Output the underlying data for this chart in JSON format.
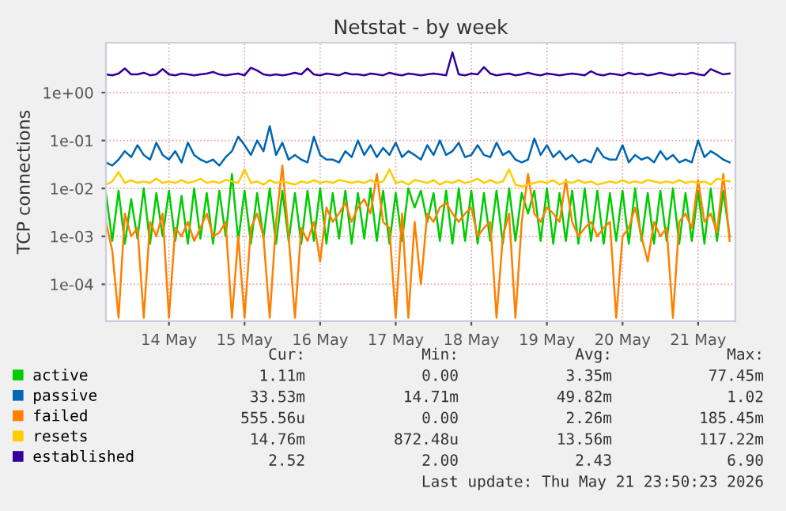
{
  "chart_data": {
    "type": "line",
    "title": "Netstat - by week",
    "ylabel": "TCP connections",
    "log": "y",
    "grid": true,
    "legend": "bottom",
    "marker": "none",
    "line_style": "solid",
    "x": [
      "2026-05-13T16:00",
      "2026-05-13T18:00",
      "2026-05-13T20:00",
      "2026-05-13T22:00",
      "2026-05-14T00:00",
      "2026-05-14T02:00",
      "2026-05-14T04:00",
      "2026-05-14T06:00",
      "2026-05-14T08:00",
      "2026-05-14T10:00",
      "2026-05-14T12:00",
      "2026-05-14T14:00",
      "2026-05-14T16:00",
      "2026-05-14T18:00",
      "2026-05-14T20:00",
      "2026-05-14T22:00",
      "2026-05-15T00:00",
      "2026-05-15T02:00",
      "2026-05-15T04:00",
      "2026-05-15T06:00",
      "2026-05-15T08:00",
      "2026-05-15T10:00",
      "2026-05-15T12:00",
      "2026-05-15T14:00",
      "2026-05-15T16:00",
      "2026-05-15T18:00",
      "2026-05-15T20:00",
      "2026-05-15T22:00",
      "2026-05-16T00:00",
      "2026-05-16T02:00",
      "2026-05-16T04:00",
      "2026-05-16T06:00",
      "2026-05-16T08:00",
      "2026-05-16T10:00",
      "2026-05-16T12:00",
      "2026-05-16T14:00",
      "2026-05-16T16:00",
      "2026-05-16T18:00",
      "2026-05-16T20:00",
      "2026-05-16T22:00",
      "2026-05-17T00:00",
      "2026-05-17T02:00",
      "2026-05-17T04:00",
      "2026-05-17T06:00",
      "2026-05-17T08:00",
      "2026-05-17T10:00",
      "2026-05-17T12:00",
      "2026-05-17T14:00",
      "2026-05-17T16:00",
      "2026-05-17T18:00",
      "2026-05-17T20:00",
      "2026-05-17T22:00",
      "2026-05-18T00:00",
      "2026-05-18T02:00",
      "2026-05-18T04:00",
      "2026-05-18T06:00",
      "2026-05-18T08:00",
      "2026-05-18T10:00",
      "2026-05-18T12:00",
      "2026-05-18T14:00",
      "2026-05-18T16:00",
      "2026-05-18T18:00",
      "2026-05-18T20:00",
      "2026-05-18T22:00",
      "2026-05-19T00:00",
      "2026-05-19T02:00",
      "2026-05-19T04:00",
      "2026-05-19T06:00",
      "2026-05-19T08:00",
      "2026-05-19T10:00",
      "2026-05-19T12:00",
      "2026-05-19T14:00",
      "2026-05-19T16:00",
      "2026-05-19T18:00",
      "2026-05-19T20:00",
      "2026-05-19T22:00",
      "2026-05-20T00:00",
      "2026-05-20T02:00",
      "2026-05-20T04:00",
      "2026-05-20T06:00",
      "2026-05-20T08:00",
      "2026-05-20T10:00",
      "2026-05-20T12:00",
      "2026-05-20T14:00",
      "2026-05-20T16:00",
      "2026-05-20T18:00",
      "2026-05-20T20:00",
      "2026-05-20T22:00",
      "2026-05-21T00:00",
      "2026-05-21T02:00",
      "2026-05-21T04:00",
      "2026-05-21T06:00",
      "2026-05-21T08:00",
      "2026-05-21T10:00",
      "2026-05-21T12:00",
      "2026-05-21T14:00",
      "2026-05-21T16:00",
      "2026-05-21T18:00",
      "2026-05-21T20:00",
      "2026-05-21T22:00"
    ],
    "xlim": [
      "2026-05-13T16:00",
      "2026-05-21T23:50"
    ],
    "xticks": [
      {
        "value": "2026-05-14T12:00",
        "label": "14 May"
      },
      {
        "value": "2026-05-15T12:00",
        "label": "15 May"
      },
      {
        "value": "2026-05-16T12:00",
        "label": "16 May"
      },
      {
        "value": "2026-05-17T12:00",
        "label": "17 May"
      },
      {
        "value": "2026-05-18T12:00",
        "label": "18 May"
      },
      {
        "value": "2026-05-19T12:00",
        "label": "19 May"
      },
      {
        "value": "2026-05-20T12:00",
        "label": "20 May"
      },
      {
        "value": "2026-05-21T12:00",
        "label": "21 May"
      }
    ],
    "ylim": [
      1.7e-05,
      11
    ],
    "yticks": [
      {
        "value": 0.0001,
        "label": "1e-04"
      },
      {
        "value": 0.001,
        "label": "1e-03"
      },
      {
        "value": 0.01,
        "label": "1e-02"
      },
      {
        "value": 0.1,
        "label": "1e-01"
      },
      {
        "value": 1,
        "label": "1e+00"
      }
    ],
    "series": [
      {
        "name": "active",
        "color": "#00cc00",
        "values": [
          0.008,
          0.0008,
          0.009,
          0.0007,
          0.006,
          0.0009,
          0.01,
          0.0007,
          0.008,
          0.001,
          0.009,
          0.0008,
          0.007,
          0.0007,
          0.01,
          0.0009,
          0.008,
          0.0007,
          0.009,
          0.001,
          0.02,
          0.0008,
          0.009,
          0.0007,
          0.008,
          0.0009,
          0.01,
          0.0007,
          0.009,
          0.0008,
          0.008,
          0.0007,
          0.009,
          0.0008,
          0.01,
          0.0007,
          0.008,
          0.0009,
          0.009,
          0.0007,
          0.008,
          0.0009,
          0.01,
          0.0008,
          0.009,
          0.0007,
          0.008,
          0.0008,
          0.01,
          0.004,
          0.009,
          0.002,
          0.008,
          0.0008,
          0.009,
          0.0007,
          0.01,
          0.0008,
          0.009,
          0.0007,
          0.008,
          0.0008,
          0.009,
          0.0007,
          0.01,
          0.0008,
          0.008,
          0.003,
          0.009,
          0.0008,
          0.01,
          0.0007,
          0.008,
          0.0008,
          0.009,
          0.0007,
          0.01,
          0.0008,
          0.009,
          0.0007,
          0.008,
          0.0008,
          0.009,
          0.0007,
          0.01,
          0.0008,
          0.008,
          0.0007,
          0.009,
          0.0008,
          0.01,
          0.0007,
          0.008,
          0.0008,
          0.009,
          0.0007,
          0.01,
          0.0008,
          0.009,
          0.001
        ]
      },
      {
        "name": "passive",
        "color": "#0066b3",
        "values": [
          0.035,
          0.03,
          0.04,
          0.06,
          0.045,
          0.08,
          0.05,
          0.04,
          0.09,
          0.05,
          0.04,
          0.06,
          0.035,
          0.09,
          0.05,
          0.04,
          0.035,
          0.04,
          0.03,
          0.045,
          0.06,
          0.12,
          0.08,
          0.05,
          0.1,
          0.06,
          0.2,
          0.05,
          0.09,
          0.04,
          0.05,
          0.04,
          0.035,
          0.12,
          0.05,
          0.04,
          0.04,
          0.035,
          0.06,
          0.045,
          0.1,
          0.05,
          0.08,
          0.045,
          0.07,
          0.05,
          0.09,
          0.045,
          0.06,
          0.05,
          0.04,
          0.08,
          0.05,
          0.1,
          0.05,
          0.06,
          0.09,
          0.045,
          0.05,
          0.08,
          0.05,
          0.045,
          0.09,
          0.05,
          0.06,
          0.04,
          0.035,
          0.04,
          0.11,
          0.05,
          0.08,
          0.045,
          0.06,
          0.04,
          0.05,
          0.035,
          0.04,
          0.035,
          0.07,
          0.045,
          0.04,
          0.04,
          0.08,
          0.035,
          0.05,
          0.04,
          0.045,
          0.035,
          0.06,
          0.04,
          0.05,
          0.035,
          0.04,
          0.035,
          0.1,
          0.045,
          0.06,
          0.05,
          0.04,
          0.035
        ]
      },
      {
        "name": "failed",
        "color": "#ff8000",
        "values": [
          0.002,
          0.0005,
          2e-05,
          0.003,
          0.001,
          0.0015,
          2e-05,
          0.002,
          0.001,
          0.003,
          2e-05,
          0.0015,
          0.001,
          0.002,
          0.0008,
          0.0015,
          0.003,
          0.001,
          0.0012,
          0.002,
          2e-05,
          0.001,
          2e-05,
          0.0015,
          0.003,
          0.001,
          2e-05,
          0.002,
          0.03,
          0.001,
          2e-05,
          0.0015,
          0.0008,
          0.002,
          0.0003,
          0.004,
          0.002,
          0.003,
          0.005,
          0.002,
          0.004,
          0.006,
          0.003,
          0.02,
          0.002,
          0.0015,
          2e-05,
          0.003,
          2e-05,
          0.002,
          0.0001,
          0.003,
          0.002,
          0.004,
          0.005,
          0.003,
          0.002,
          0.003,
          0.004,
          0.001,
          0.0015,
          0.002,
          2e-05,
          0.001,
          0.003,
          2e-05,
          0.002,
          0.02,
          0.003,
          0.002,
          0.004,
          0.003,
          0.002,
          0.015,
          0.002,
          0.001,
          0.0015,
          0.002,
          0.001,
          0.0015,
          0.002,
          2e-05,
          0.001,
          0.0015,
          0.004,
          0.001,
          0.0003,
          0.002,
          0.001,
          0.0015,
          2e-05,
          0.002,
          0.003,
          0.0015,
          0.015,
          0.002,
          0.003,
          0.0012,
          0.02,
          0.0008
        ]
      },
      {
        "name": "resets",
        "color": "#ffcc00",
        "values": [
          0.012,
          0.014,
          0.022,
          0.013,
          0.015,
          0.013,
          0.014,
          0.013,
          0.016,
          0.013,
          0.014,
          0.013,
          0.015,
          0.013,
          0.014,
          0.016,
          0.013,
          0.014,
          0.013,
          0.015,
          0.014,
          0.013,
          0.025,
          0.013,
          0.014,
          0.012,
          0.015,
          0.013,
          0.014,
          0.013,
          0.012,
          0.014,
          0.013,
          0.015,
          0.013,
          0.014,
          0.013,
          0.015,
          0.014,
          0.013,
          0.014,
          0.013,
          0.015,
          0.013,
          0.014,
          0.025,
          0.013,
          0.014,
          0.012,
          0.015,
          0.014,
          0.013,
          0.015,
          0.012,
          0.014,
          0.013,
          0.015,
          0.013,
          0.014,
          0.016,
          0.013,
          0.015,
          0.013,
          0.014,
          0.025,
          0.012,
          0.011,
          0.012,
          0.013,
          0.014,
          0.013,
          0.015,
          0.012,
          0.014,
          0.013,
          0.015,
          0.013,
          0.014,
          0.012,
          0.013,
          0.014,
          0.013,
          0.015,
          0.013,
          0.014,
          0.013,
          0.015,
          0.014,
          0.013,
          0.014,
          0.013,
          0.015,
          0.013,
          0.014,
          0.013,
          0.014,
          0.012,
          0.016,
          0.015,
          0.014
        ]
      },
      {
        "name": "established",
        "color": "#330099",
        "values": [
          2.4,
          2.3,
          2.5,
          3.2,
          2.4,
          2.4,
          2.6,
          2.3,
          2.4,
          3.1,
          2.4,
          2.3,
          2.5,
          2.4,
          2.3,
          2.4,
          2.5,
          2.7,
          2.4,
          2.3,
          2.4,
          2.5,
          2.3,
          3.3,
          2.9,
          2.4,
          2.3,
          2.4,
          2.3,
          2.4,
          2.6,
          2.4,
          3.2,
          2.4,
          2.3,
          2.5,
          2.4,
          2.3,
          2.6,
          2.4,
          2.4,
          2.3,
          2.5,
          2.4,
          2.3,
          2.6,
          2.4,
          2.3,
          2.5,
          2.4,
          2.3,
          2.4,
          2.5,
          2.4,
          2.3,
          6.9,
          2.4,
          2.3,
          2.5,
          2.4,
          3.4,
          2.5,
          2.3,
          2.4,
          2.5,
          2.3,
          2.4,
          2.6,
          2.4,
          2.3,
          2.5,
          2.4,
          2.3,
          2.4,
          2.5,
          2.4,
          2.3,
          2.8,
          2.4,
          2.3,
          2.5,
          2.4,
          2.3,
          2.6,
          2.4,
          2.5,
          2.3,
          2.4,
          2.6,
          2.4,
          2.3,
          2.5,
          2.4,
          2.6,
          2.4,
          2.3,
          3.1,
          2.7,
          2.4,
          2.5
        ]
      }
    ],
    "annotations": [
      "Cur:",
      "Min:",
      "Avg:",
      "Max:",
      "1.11m",
      "0.00",
      "3.35m",
      "77.45m",
      "33.53m",
      "14.71m",
      "49.82m",
      "1.02",
      "555.56u",
      "0.00",
      "2.26m",
      "185.45m",
      "14.76m",
      "872.48u",
      "13.56m",
      "117.22m",
      "2.52",
      "2.00",
      "2.43",
      "6.90",
      "Last update: Thu May 21 23:50:23 2026"
    ]
  }
}
